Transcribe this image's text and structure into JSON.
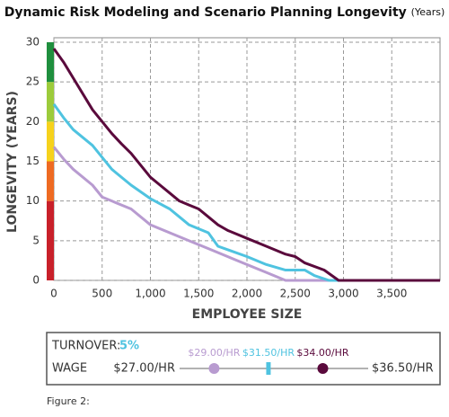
{
  "chart_data": {
    "type": "line",
    "title": "Dynamic Risk Modeling and Scenario Planning Longevity",
    "title_unit": "(Years)",
    "x_label": "EMPLOYEE SIZE",
    "y_label": "LONGEVITY (YEARS)",
    "xlim": [
      0,
      4000
    ],
    "xticks": [
      0,
      500,
      {
        "value": 1000,
        "label": "1,000"
      },
      {
        "value": 1500,
        "label": "1,500"
      },
      {
        "value": 2000,
        "label": "2,000"
      },
      {
        "value": 2500,
        "label": "2,500"
      },
      {
        "value": 3000,
        "label": "3,000"
      },
      {
        "value": 3500,
        "label": "3,500"
      }
    ],
    "ylim": [
      0,
      30
    ],
    "yticks": [
      0,
      5,
      10,
      15,
      20,
      25,
      30
    ],
    "grid": true,
    "risk_bands": [
      {
        "from": 0,
        "to": 10,
        "color": "#c8202a"
      },
      {
        "from": 10,
        "to": 15,
        "color": "#ee6a22"
      },
      {
        "from": 15,
        "to": 20,
        "color": "#f6d21c"
      },
      {
        "from": 20,
        "to": 25,
        "color": "#9ccb3b"
      },
      {
        "from": 25,
        "to": 30,
        "color": "#1f8f3e"
      }
    ],
    "series": [
      {
        "name": "$29.00/HR",
        "color": "#b89bd0",
        "wage": 29,
        "x": [
          0,
          100,
          200,
          400,
          500,
          600,
          800,
          1000,
          1200,
          1400,
          1600,
          2000,
          2200,
          2400,
          4000
        ],
        "values": [
          16.8,
          15.3,
          14,
          12,
          10.5,
          10,
          9,
          7,
          6,
          5,
          4,
          2,
          1,
          0,
          0
        ]
      },
      {
        "name": "$31.50/HR",
        "color": "#4fc3e0",
        "wage": 31.5,
        "x": [
          0,
          100,
          200,
          400,
          500,
          600,
          800,
          1000,
          1200,
          1300,
          1400,
          1600,
          1700,
          2000,
          2200,
          2400,
          2600,
          2700,
          2850,
          4000
        ],
        "values": [
          22.2,
          20.5,
          19,
          17,
          15.5,
          14,
          12,
          10.3,
          9,
          8,
          7,
          6,
          4.3,
          3,
          2,
          1.3,
          1.3,
          0.6,
          0,
          0
        ]
      },
      {
        "name": "$34.00/HR",
        "color": "#5a0a3c",
        "wage": 34,
        "x": [
          0,
          100,
          200,
          300,
          400,
          500,
          600,
          700,
          800,
          900,
          1000,
          1100,
          1200,
          1300,
          1400,
          1500,
          1600,
          1700,
          1800,
          2000,
          2200,
          2400,
          2500,
          2600,
          2800,
          2950,
          4000
        ],
        "values": [
          29.2,
          27.5,
          25.5,
          23.5,
          21.5,
          20,
          18.5,
          17.2,
          16,
          14.5,
          13,
          12,
          11,
          10,
          9.5,
          9,
          8,
          7,
          6.3,
          5.3,
          4.3,
          3.3,
          3,
          2.2,
          1.3,
          0,
          0
        ]
      }
    ],
    "turnover_label": "TURNOVER:",
    "turnover_value": "5%",
    "wage_label": "WAGE",
    "wage_min": {
      "value": 27,
      "label": "$27.00/HR"
    },
    "wage_max": {
      "value": 36.5,
      "label": "$36.50/HR"
    },
    "caption": "Figure 2:"
  }
}
